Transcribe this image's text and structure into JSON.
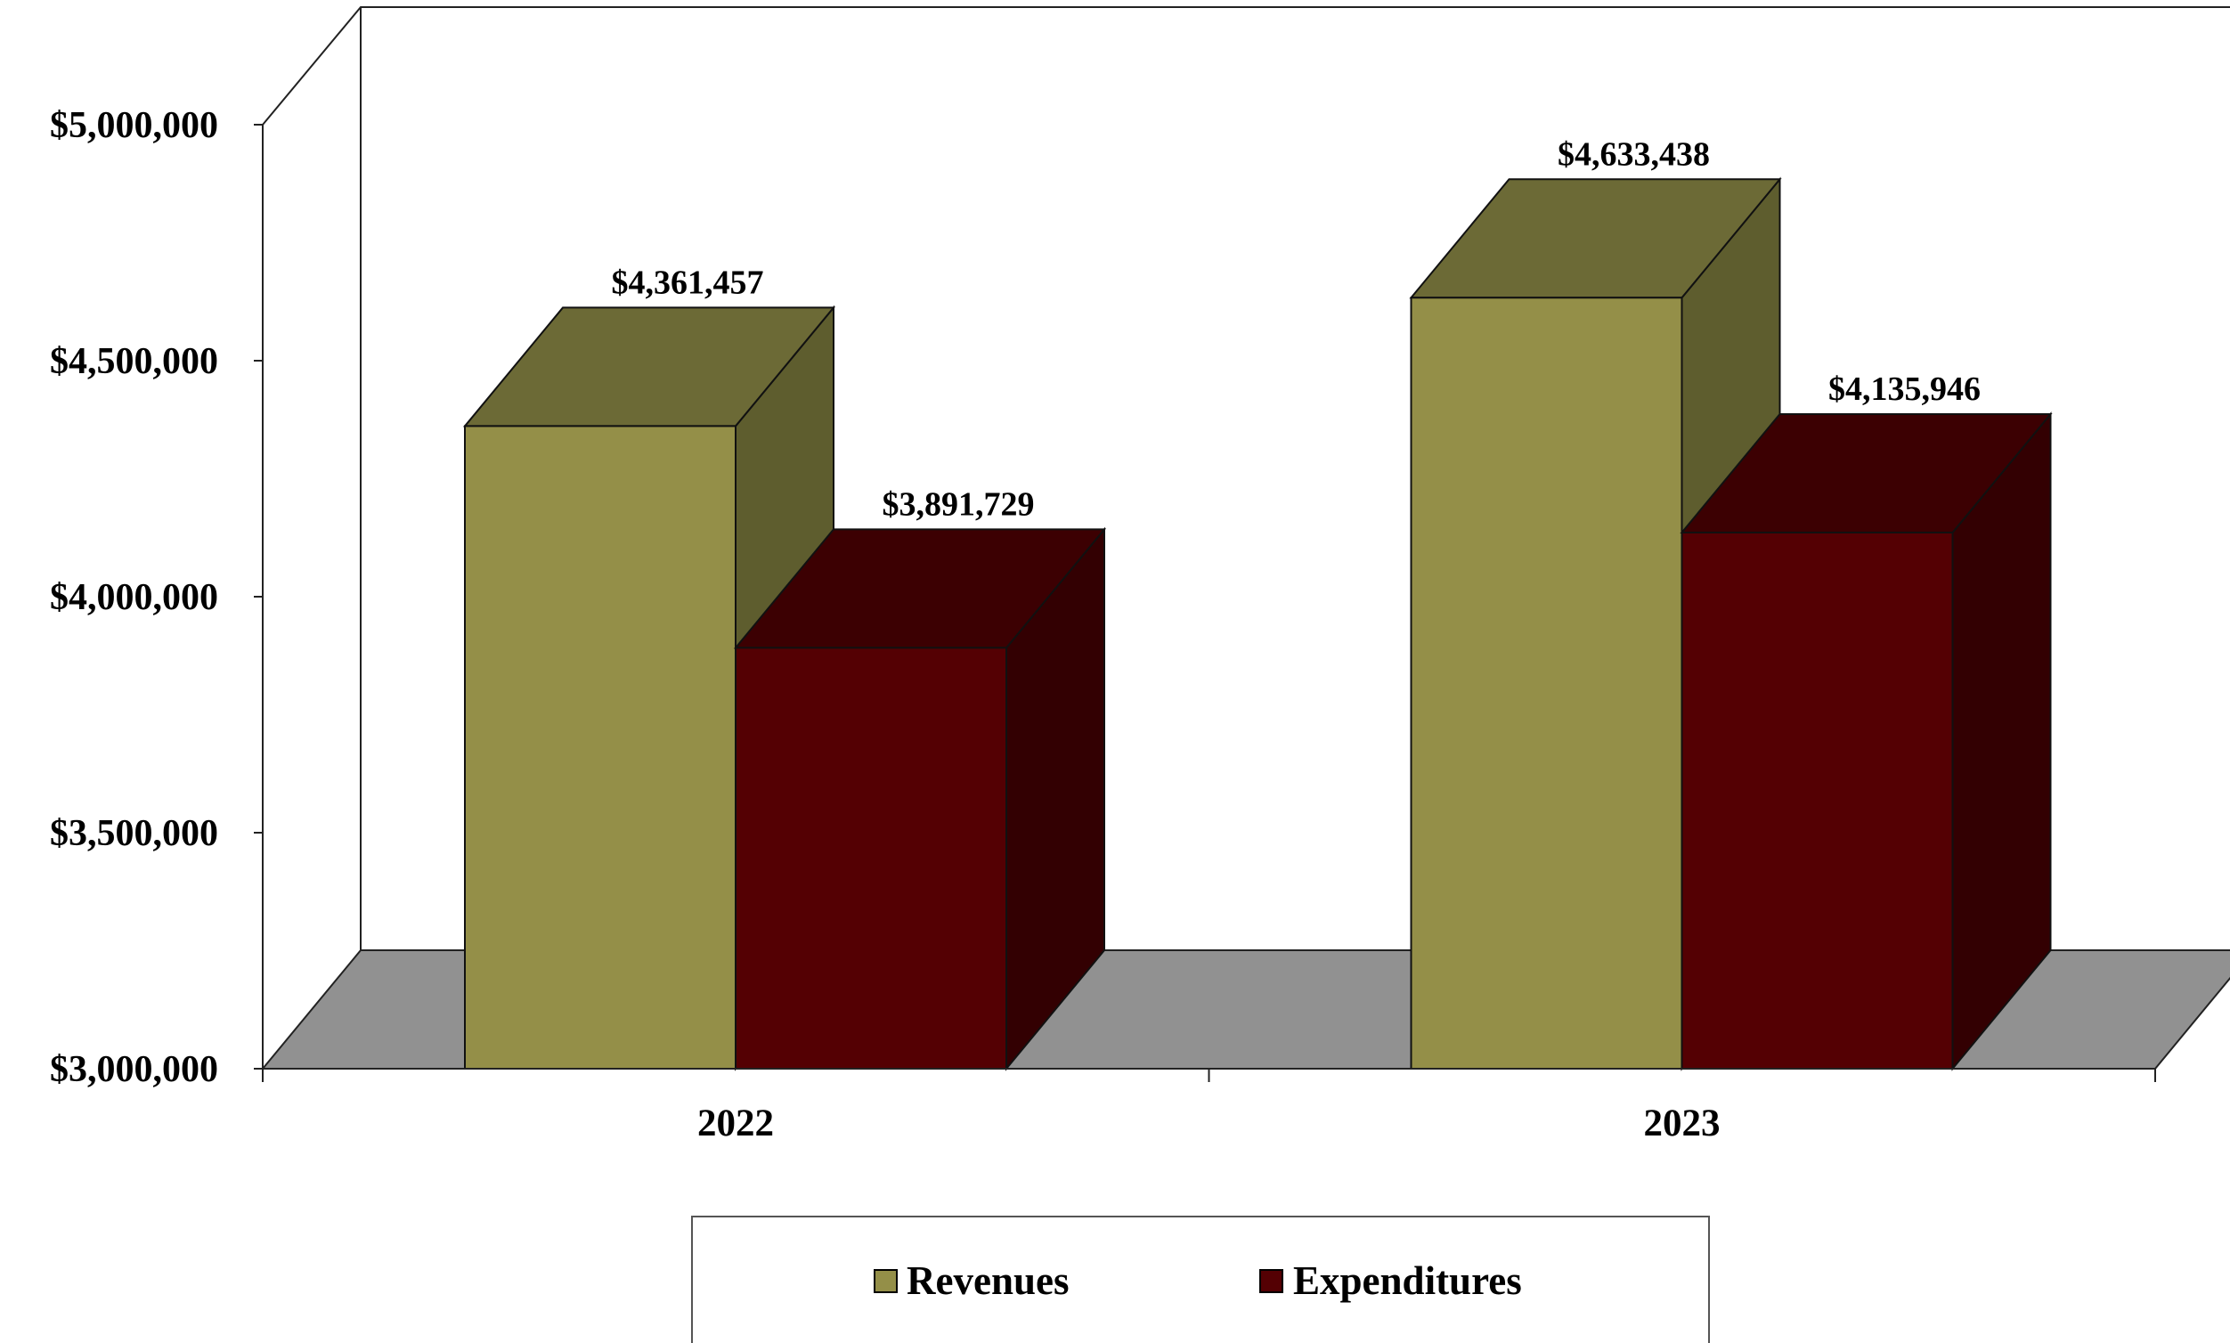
{
  "chart_data": {
    "type": "bar",
    "style": "3d-clustered-column",
    "categories": [
      "2022",
      "2023"
    ],
    "series": [
      {
        "name": "Revenues",
        "values": [
          4361457,
          4633438
        ],
        "labels": [
          "$4,361,457",
          "$4,633,438"
        ]
      },
      {
        "name": "Expenditures",
        "values": [
          3891729,
          4135946
        ],
        "labels": [
          "$3,891,729",
          "$4,135,946"
        ]
      }
    ],
    "ylim": [
      3000000,
      5000000
    ],
    "yticks": [
      3000000,
      3500000,
      4000000,
      4500000,
      5000000
    ],
    "ytick_labels": [
      "$3,000,000",
      "$3,500,000",
      "$4,000,000",
      "$4,500,000",
      "$5,000,000"
    ],
    "grid": false,
    "legend_position": "bottom",
    "colors": {
      "Revenues": {
        "front": "#948F48",
        "top": "#6C6A36",
        "side": "#5E5D2E"
      },
      "Expenditures": {
        "front": "#540003",
        "top": "#3C0002",
        "side": "#330002"
      },
      "floor": "#919191"
    }
  }
}
